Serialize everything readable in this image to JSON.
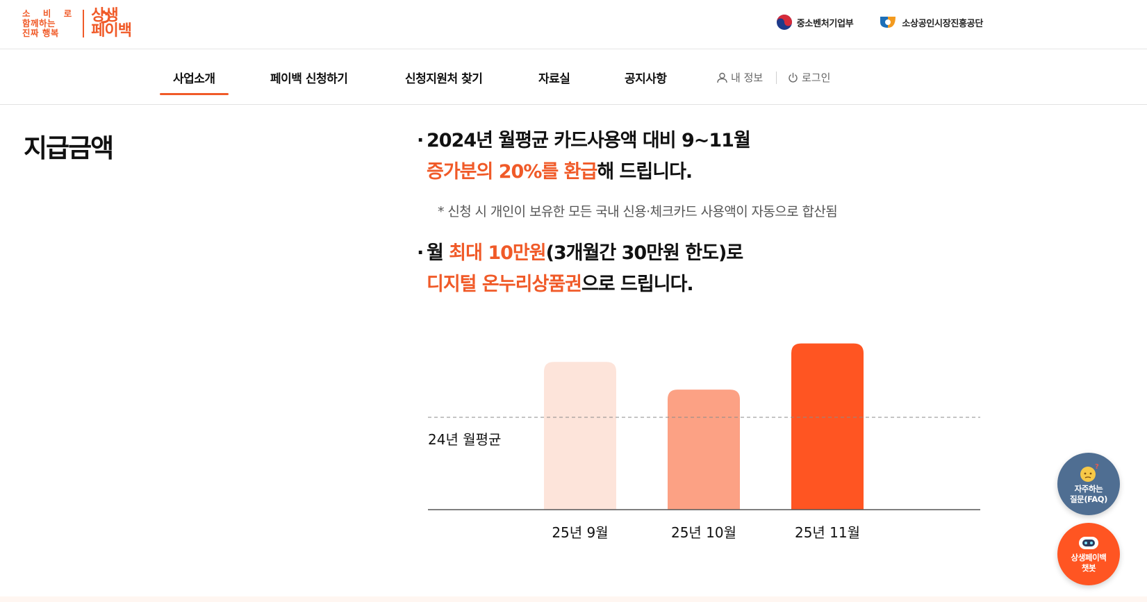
{
  "logo": {
    "tagline_line1": "소 비 로",
    "tagline_line2": "함께하는",
    "tagline_line3": "진짜 행복",
    "brand_line1": "상생",
    "brand_line2": "페이백"
  },
  "agencies": [
    {
      "label": "중소벤처기업부",
      "icon": "taegeuk-icon"
    },
    {
      "label": "소상공인시장진흥공단",
      "icon": "semas-logo-icon"
    }
  ],
  "nav": {
    "items": [
      "사업소개",
      "페이백 신청하기",
      "신청지원처 찾기",
      "자료실",
      "공지사항"
    ],
    "active_index": 0,
    "my_info": "내 정보",
    "login": "로그인"
  },
  "section_title": "지급금액",
  "bullet1": {
    "line1": "2024년 월평균 카드사용액 대비 9~11월",
    "line2_highlight": "증가분의 20%를 환급",
    "line2_rest": "해 드립니다."
  },
  "note": "* 신청 시 개인이 보유한 모든 국내 신용·체크카드 사용액이 자동으로 합산됨",
  "bullet2": {
    "line1_prefix": "월 ",
    "line1_highlight": "최대 10만원",
    "line1_rest": "(3개월간 30만원 한도)로",
    "line2_highlight": "디지털 온누리상품권",
    "line2_rest": "으로 드립니다."
  },
  "chart_data": {
    "type": "bar",
    "categories": [
      "25년 9월",
      "25년 10월",
      "25년 11월"
    ],
    "values": [
      1.6,
      1.3,
      1.8
    ],
    "reference_line": {
      "label": "24년 월평균",
      "value": 1.0
    },
    "ylim": [
      0,
      1.85
    ],
    "grid": false,
    "colors": [
      "#fde4da",
      "#fca184",
      "#ff5522"
    ]
  },
  "faq_button": {
    "line1": "자주하는",
    "line2": "질문(FAQ)"
  },
  "chatbot_button": {
    "line1": "상생페이백",
    "line2": "챗봇"
  },
  "colors": {
    "accent": "#f05a28",
    "faq_bg": "#4f6e92",
    "chatbot_bg": "#ff5522"
  }
}
